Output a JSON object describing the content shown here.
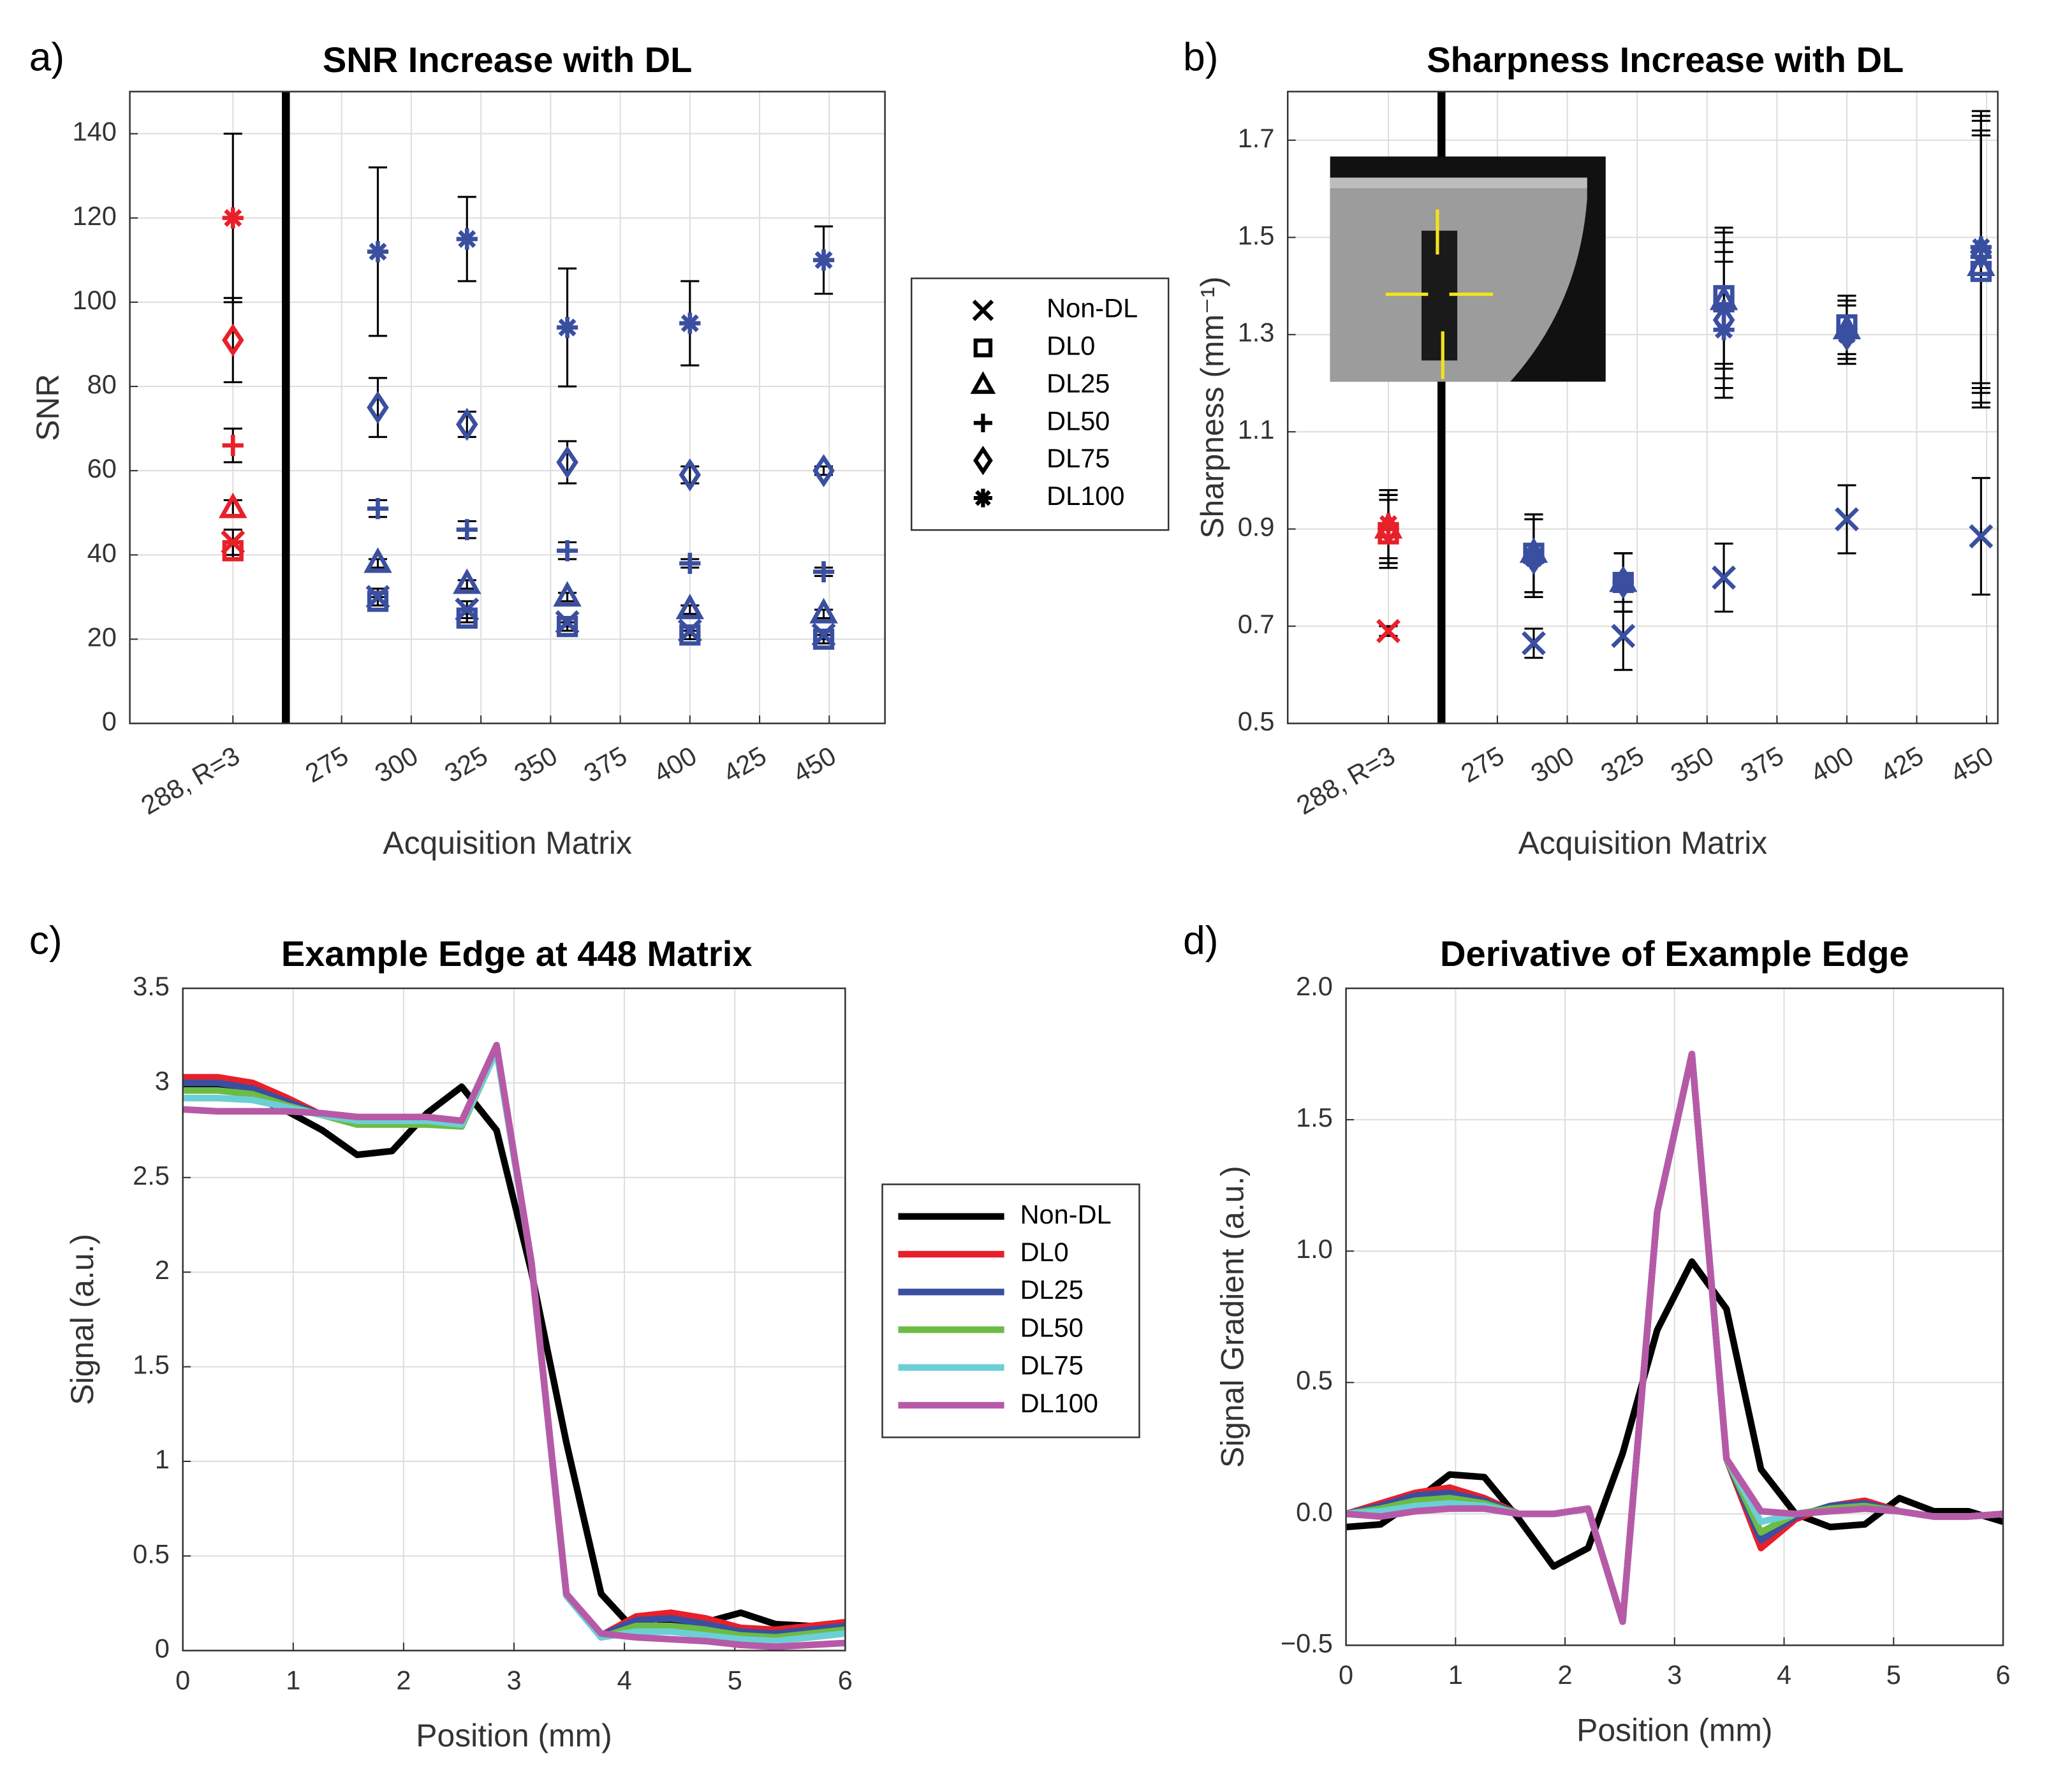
{
  "chart_data": [
    {
      "type": "scatter",
      "label": "a)",
      "title": "SNR Increase with DL",
      "xlabel": "Acquisition Matrix",
      "ylabel": "SNR",
      "x": [
        236,
        288,
        320,
        356,
        400,
        448
      ],
      "point_colors": [
        "#e8202a",
        "#3a4fa0",
        "#3a4fa0",
        "#3a4fa0",
        "#3a4fa0",
        "#3a4fa0"
      ],
      "legend_marker_color": "#000000",
      "legend": "outside right",
      "divider_x": 255,
      "series": [
        {
          "name": "Non-DL",
          "marker": "x",
          "values": [
            43,
            30,
            27,
            24,
            22,
            21
          ],
          "errors": [
            3,
            2,
            2,
            1,
            1,
            1
          ]
        },
        {
          "name": "DL0",
          "marker": "square",
          "values": [
            41,
            29,
            25,
            23,
            21,
            20
          ],
          "errors": [
            2,
            1,
            1,
            1,
            1,
            1
          ]
        },
        {
          "name": "DL25",
          "marker": "triangle",
          "values": [
            51,
            38,
            33,
            30,
            27,
            26
          ],
          "errors": [
            2,
            1,
            1,
            1,
            1,
            1
          ]
        },
        {
          "name": "DL50",
          "marker": "plus",
          "values": [
            66,
            51,
            46,
            41,
            38,
            36
          ],
          "errors": [
            4,
            2,
            2,
            2,
            1,
            1
          ]
        },
        {
          "name": "DL75",
          "marker": "diamond",
          "values": [
            91,
            75,
            71,
            62,
            59,
            60
          ],
          "errors": [
            10,
            7,
            3,
            5,
            2,
            1
          ]
        },
        {
          "name": "DL100",
          "marker": "asterisk",
          "values": [
            120,
            112,
            115,
            94,
            95,
            110
          ],
          "errors": [
            20,
            20,
            10,
            14,
            10,
            8
          ]
        }
      ],
      "xlim": [
        199,
        470
      ],
      "xticks": [
        {
          "value": 236,
          "label": "288, R=3"
        },
        275,
        300,
        325,
        350,
        375,
        400,
        425,
        450
      ],
      "ylim": [
        0,
        150
      ],
      "yticks": [
        0,
        20,
        40,
        60,
        80,
        100,
        120,
        140
      ],
      "grid": true
    },
    {
      "type": "scatter",
      "label": "b)",
      "title": "Sharpness Increase with DL",
      "xlabel": "Acquisition Matrix",
      "ylabel": "Sharpness (mm⁻¹)",
      "x": [
        236,
        288,
        320,
        356,
        400,
        448
      ],
      "point_colors": [
        "#e8202a",
        "#3a4fa0",
        "#3a4fa0",
        "#3a4fa0",
        "#3a4fa0",
        "#3a4fa0"
      ],
      "divider_x": 255,
      "series": [
        {
          "name": "Non-DL",
          "marker": "x",
          "values": [
            0.69,
            0.665,
            0.68,
            0.8,
            0.92,
            0.885
          ],
          "errors": [
            0.01,
            0.03,
            0.07,
            0.07,
            0.07,
            0.12
          ]
        },
        {
          "name": "DL0",
          "marker": "square",
          "values": [
            0.89,
            0.85,
            0.79,
            1.38,
            1.32,
            1.43
          ],
          "errors": [
            0.07,
            0.08,
            0.06,
            0.14,
            0.06,
            0.28
          ]
        },
        {
          "name": "DL25",
          "marker": "triangle",
          "values": [
            0.9,
            0.85,
            0.79,
            1.37,
            1.31,
            1.44
          ],
          "errors": [
            0.07,
            0.08,
            0.06,
            0.14,
            0.06,
            0.28
          ]
        },
        {
          "name": "DL50",
          "marker": "plus",
          "values": [
            0.9,
            0.84,
            0.79,
            1.35,
            1.31,
            1.46
          ],
          "errors": [
            0.07,
            0.08,
            0.06,
            0.14,
            0.06,
            0.28
          ]
        },
        {
          "name": "DL75",
          "marker": "diamond",
          "values": [
            0.9,
            0.84,
            0.79,
            1.33,
            1.3,
            1.47
          ],
          "errors": [
            0.07,
            0.08,
            0.06,
            0.14,
            0.06,
            0.28
          ]
        },
        {
          "name": "DL100",
          "marker": "asterisk",
          "values": [
            0.91,
            0.84,
            0.79,
            1.31,
            1.3,
            1.48
          ],
          "errors": [
            0.07,
            0.08,
            0.06,
            0.14,
            0.06,
            0.28
          ]
        }
      ],
      "xlim": [
        200,
        454
      ],
      "xticks": [
        {
          "value": 236,
          "label": "288, R=3"
        },
        275,
        300,
        325,
        350,
        375,
        400,
        425,
        450
      ],
      "ylim": [
        0.5,
        1.8
      ],
      "yticks": [
        0.5,
        0.7,
        0.9,
        1.1,
        1.3,
        1.5,
        1.7
      ],
      "grid": true
    },
    {
      "type": "line",
      "label": "c)",
      "title": "Example Edge at 448 Matrix",
      "xlabel": "Position (mm)",
      "ylabel": "Signal (a.u.)",
      "x": [
        0,
        0.316,
        0.632,
        0.947,
        1.263,
        1.579,
        1.895,
        2.211,
        2.526,
        2.842,
        3.158,
        3.474,
        3.789,
        4.105,
        4.421,
        4.737,
        5.053,
        5.368,
        5.684,
        6
      ],
      "legend": "outside right",
      "series": [
        {
          "name": "Non-DL",
          "color": "#000000",
          "values": [
            2.97,
            2.97,
            2.93,
            2.85,
            2.75,
            2.62,
            2.64,
            2.84,
            2.98,
            2.75,
            2.0,
            1.1,
            0.3,
            0.1,
            0.15,
            0.15,
            0.2,
            0.14,
            0.13,
            0.12
          ]
        },
        {
          "name": "DL0",
          "color": "#e8202a",
          "values": [
            3.03,
            3.03,
            3.0,
            2.92,
            2.83,
            2.8,
            2.8,
            2.8,
            2.78,
            3.18,
            2.05,
            0.3,
            0.08,
            0.18,
            0.2,
            0.17,
            0.12,
            0.11,
            0.13,
            0.15
          ]
        },
        {
          "name": "DL25",
          "color": "#3a4fa0",
          "values": [
            3.0,
            3.0,
            2.97,
            2.9,
            2.83,
            2.79,
            2.79,
            2.79,
            2.78,
            3.18,
            2.05,
            0.3,
            0.08,
            0.16,
            0.17,
            0.14,
            0.1,
            0.09,
            0.11,
            0.13
          ]
        },
        {
          "name": "DL50",
          "color": "#6cbb45",
          "values": [
            2.96,
            2.96,
            2.94,
            2.88,
            2.83,
            2.78,
            2.78,
            2.78,
            2.77,
            3.17,
            2.05,
            0.29,
            0.07,
            0.13,
            0.13,
            0.11,
            0.08,
            0.07,
            0.09,
            0.11
          ]
        },
        {
          "name": "DL75",
          "color": "#6ccfd5",
          "values": [
            2.92,
            2.92,
            2.91,
            2.87,
            2.83,
            2.8,
            2.8,
            2.8,
            2.78,
            3.17,
            2.05,
            0.29,
            0.07,
            0.1,
            0.1,
            0.08,
            0.06,
            0.05,
            0.07,
            0.09
          ]
        },
        {
          "name": "DL100",
          "color": "#b65aa8",
          "values": [
            2.86,
            2.85,
            2.85,
            2.85,
            2.84,
            2.82,
            2.82,
            2.82,
            2.8,
            3.2,
            2.05,
            0.3,
            0.09,
            0.07,
            0.06,
            0.05,
            0.03,
            0.02,
            0.03,
            0.04
          ]
        }
      ],
      "xlim": [
        0,
        6
      ],
      "xticks": [
        0,
        1,
        2,
        3,
        4,
        5,
        6
      ],
      "ylim": [
        0,
        3.5
      ],
      "yticks": [
        0,
        0.5,
        1,
        1.5,
        2,
        2.5,
        3,
        3.5
      ],
      "grid": true
    },
    {
      "type": "line",
      "label": "d)",
      "title": "Derivative of Example Edge",
      "xlabel": "Position (mm)",
      "ylabel": "Signal Gradient (a.u.)",
      "x": [
        0,
        0.316,
        0.632,
        0.947,
        1.263,
        1.579,
        1.895,
        2.211,
        2.526,
        2.842,
        3.158,
        3.474,
        3.789,
        4.105,
        4.421,
        4.737,
        5.053,
        5.368,
        5.684,
        6
      ],
      "series": [
        {
          "name": "Non-DL",
          "color": "#000000",
          "values": [
            -0.05,
            -0.04,
            0.05,
            0.15,
            0.14,
            -0.02,
            -0.2,
            -0.13,
            0.23,
            0.7,
            0.96,
            0.78,
            0.17,
            0.0,
            -0.05,
            -0.04,
            0.06,
            0.01,
            0.01,
            -0.03
          ]
        },
        {
          "name": "DL0",
          "color": "#e8202a",
          "values": [
            0,
            0.04,
            0.08,
            0.1,
            0.06,
            0.0,
            0.0,
            0.02,
            -0.41,
            1.15,
            1.75,
            0.21,
            -0.13,
            -0.02,
            0.03,
            0.05,
            0.01,
            -0.01,
            -0.01,
            0
          ]
        },
        {
          "name": "DL25",
          "color": "#3a4fa0",
          "values": [
            0,
            0.03,
            0.07,
            0.08,
            0.05,
            0.0,
            0.0,
            0.02,
            -0.41,
            1.15,
            1.75,
            0.21,
            -0.1,
            -0.01,
            0.03,
            0.04,
            0.01,
            -0.01,
            -0.01,
            0
          ]
        },
        {
          "name": "DL50",
          "color": "#6cbb45",
          "values": [
            0,
            0.02,
            0.05,
            0.06,
            0.04,
            0.0,
            0.0,
            0.02,
            -0.41,
            1.15,
            1.75,
            0.21,
            -0.07,
            0.0,
            0.02,
            0.03,
            0.01,
            -0.01,
            -0.01,
            0
          ]
        },
        {
          "name": "DL75",
          "color": "#6ccfd5",
          "values": [
            0,
            0.01,
            0.03,
            0.04,
            0.03,
            0.0,
            0.0,
            0.02,
            -0.41,
            1.15,
            1.75,
            0.21,
            -0.03,
            0.0,
            0.01,
            0.02,
            0.01,
            -0.01,
            -0.01,
            0
          ]
        },
        {
          "name": "DL100",
          "color": "#b65aa8",
          "values": [
            0,
            -0.01,
            0.01,
            0.02,
            0.02,
            0.0,
            0.0,
            0.02,
            -0.41,
            1.15,
            1.75,
            0.21,
            0.01,
            0.0,
            0.01,
            0.02,
            0.01,
            -0.01,
            -0.01,
            0
          ]
        }
      ],
      "xlim": [
        0,
        6
      ],
      "xticks": [
        0,
        1,
        2,
        3,
        4,
        5,
        6
      ],
      "ylim": [
        -0.5,
        2.0
      ],
      "yticks": [
        {
          "value": -0.5,
          "label": "−0.5"
        },
        {
          "value": 0,
          "label": "0.0"
        },
        0.5,
        {
          "value": 1,
          "label": "1.0"
        },
        1.5,
        {
          "value": 2,
          "label": "2.0"
        }
      ],
      "grid": true
    }
  ]
}
